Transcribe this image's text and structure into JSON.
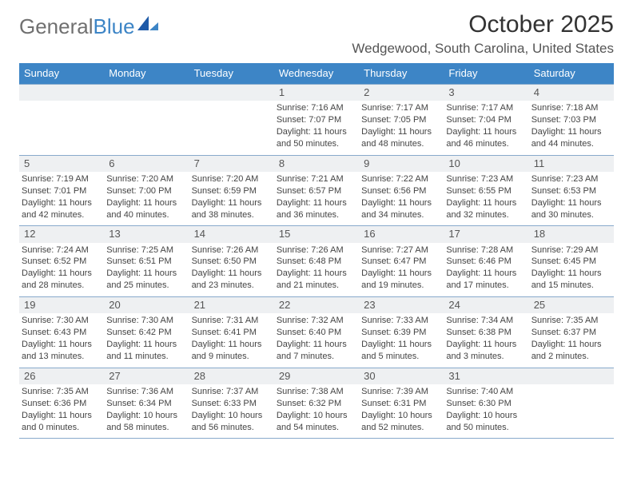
{
  "brand": {
    "general": "General",
    "blue": "Blue"
  },
  "title": "October 2025",
  "location": "Wedgewood, South Carolina, United States",
  "colors": {
    "header_bg": "#3d85c6",
    "header_text": "#ffffff",
    "daynum_bg": "#eef0f2",
    "rule": "#88aacc",
    "text": "#333333"
  },
  "weekdays": [
    "Sunday",
    "Monday",
    "Tuesday",
    "Wednesday",
    "Thursday",
    "Friday",
    "Saturday"
  ],
  "weeks": [
    [
      {
        "n": "",
        "sr": "",
        "ss": "",
        "dl1": "",
        "dl2": ""
      },
      {
        "n": "",
        "sr": "",
        "ss": "",
        "dl1": "",
        "dl2": ""
      },
      {
        "n": "",
        "sr": "",
        "ss": "",
        "dl1": "",
        "dl2": ""
      },
      {
        "n": "1",
        "sr": "Sunrise: 7:16 AM",
        "ss": "Sunset: 7:07 PM",
        "dl1": "Daylight: 11 hours",
        "dl2": "and 50 minutes."
      },
      {
        "n": "2",
        "sr": "Sunrise: 7:17 AM",
        "ss": "Sunset: 7:05 PM",
        "dl1": "Daylight: 11 hours",
        "dl2": "and 48 minutes."
      },
      {
        "n": "3",
        "sr": "Sunrise: 7:17 AM",
        "ss": "Sunset: 7:04 PM",
        "dl1": "Daylight: 11 hours",
        "dl2": "and 46 minutes."
      },
      {
        "n": "4",
        "sr": "Sunrise: 7:18 AM",
        "ss": "Sunset: 7:03 PM",
        "dl1": "Daylight: 11 hours",
        "dl2": "and 44 minutes."
      }
    ],
    [
      {
        "n": "5",
        "sr": "Sunrise: 7:19 AM",
        "ss": "Sunset: 7:01 PM",
        "dl1": "Daylight: 11 hours",
        "dl2": "and 42 minutes."
      },
      {
        "n": "6",
        "sr": "Sunrise: 7:20 AM",
        "ss": "Sunset: 7:00 PM",
        "dl1": "Daylight: 11 hours",
        "dl2": "and 40 minutes."
      },
      {
        "n": "7",
        "sr": "Sunrise: 7:20 AM",
        "ss": "Sunset: 6:59 PM",
        "dl1": "Daylight: 11 hours",
        "dl2": "and 38 minutes."
      },
      {
        "n": "8",
        "sr": "Sunrise: 7:21 AM",
        "ss": "Sunset: 6:57 PM",
        "dl1": "Daylight: 11 hours",
        "dl2": "and 36 minutes."
      },
      {
        "n": "9",
        "sr": "Sunrise: 7:22 AM",
        "ss": "Sunset: 6:56 PM",
        "dl1": "Daylight: 11 hours",
        "dl2": "and 34 minutes."
      },
      {
        "n": "10",
        "sr": "Sunrise: 7:23 AM",
        "ss": "Sunset: 6:55 PM",
        "dl1": "Daylight: 11 hours",
        "dl2": "and 32 minutes."
      },
      {
        "n": "11",
        "sr": "Sunrise: 7:23 AM",
        "ss": "Sunset: 6:53 PM",
        "dl1": "Daylight: 11 hours",
        "dl2": "and 30 minutes."
      }
    ],
    [
      {
        "n": "12",
        "sr": "Sunrise: 7:24 AM",
        "ss": "Sunset: 6:52 PM",
        "dl1": "Daylight: 11 hours",
        "dl2": "and 28 minutes."
      },
      {
        "n": "13",
        "sr": "Sunrise: 7:25 AM",
        "ss": "Sunset: 6:51 PM",
        "dl1": "Daylight: 11 hours",
        "dl2": "and 25 minutes."
      },
      {
        "n": "14",
        "sr": "Sunrise: 7:26 AM",
        "ss": "Sunset: 6:50 PM",
        "dl1": "Daylight: 11 hours",
        "dl2": "and 23 minutes."
      },
      {
        "n": "15",
        "sr": "Sunrise: 7:26 AM",
        "ss": "Sunset: 6:48 PM",
        "dl1": "Daylight: 11 hours",
        "dl2": "and 21 minutes."
      },
      {
        "n": "16",
        "sr": "Sunrise: 7:27 AM",
        "ss": "Sunset: 6:47 PM",
        "dl1": "Daylight: 11 hours",
        "dl2": "and 19 minutes."
      },
      {
        "n": "17",
        "sr": "Sunrise: 7:28 AM",
        "ss": "Sunset: 6:46 PM",
        "dl1": "Daylight: 11 hours",
        "dl2": "and 17 minutes."
      },
      {
        "n": "18",
        "sr": "Sunrise: 7:29 AM",
        "ss": "Sunset: 6:45 PM",
        "dl1": "Daylight: 11 hours",
        "dl2": "and 15 minutes."
      }
    ],
    [
      {
        "n": "19",
        "sr": "Sunrise: 7:30 AM",
        "ss": "Sunset: 6:43 PM",
        "dl1": "Daylight: 11 hours",
        "dl2": "and 13 minutes."
      },
      {
        "n": "20",
        "sr": "Sunrise: 7:30 AM",
        "ss": "Sunset: 6:42 PM",
        "dl1": "Daylight: 11 hours",
        "dl2": "and 11 minutes."
      },
      {
        "n": "21",
        "sr": "Sunrise: 7:31 AM",
        "ss": "Sunset: 6:41 PM",
        "dl1": "Daylight: 11 hours",
        "dl2": "and 9 minutes."
      },
      {
        "n": "22",
        "sr": "Sunrise: 7:32 AM",
        "ss": "Sunset: 6:40 PM",
        "dl1": "Daylight: 11 hours",
        "dl2": "and 7 minutes."
      },
      {
        "n": "23",
        "sr": "Sunrise: 7:33 AM",
        "ss": "Sunset: 6:39 PM",
        "dl1": "Daylight: 11 hours",
        "dl2": "and 5 minutes."
      },
      {
        "n": "24",
        "sr": "Sunrise: 7:34 AM",
        "ss": "Sunset: 6:38 PM",
        "dl1": "Daylight: 11 hours",
        "dl2": "and 3 minutes."
      },
      {
        "n": "25",
        "sr": "Sunrise: 7:35 AM",
        "ss": "Sunset: 6:37 PM",
        "dl1": "Daylight: 11 hours",
        "dl2": "and 2 minutes."
      }
    ],
    [
      {
        "n": "26",
        "sr": "Sunrise: 7:35 AM",
        "ss": "Sunset: 6:36 PM",
        "dl1": "Daylight: 11 hours",
        "dl2": "and 0 minutes."
      },
      {
        "n": "27",
        "sr": "Sunrise: 7:36 AM",
        "ss": "Sunset: 6:34 PM",
        "dl1": "Daylight: 10 hours",
        "dl2": "and 58 minutes."
      },
      {
        "n": "28",
        "sr": "Sunrise: 7:37 AM",
        "ss": "Sunset: 6:33 PM",
        "dl1": "Daylight: 10 hours",
        "dl2": "and 56 minutes."
      },
      {
        "n": "29",
        "sr": "Sunrise: 7:38 AM",
        "ss": "Sunset: 6:32 PM",
        "dl1": "Daylight: 10 hours",
        "dl2": "and 54 minutes."
      },
      {
        "n": "30",
        "sr": "Sunrise: 7:39 AM",
        "ss": "Sunset: 6:31 PM",
        "dl1": "Daylight: 10 hours",
        "dl2": "and 52 minutes."
      },
      {
        "n": "31",
        "sr": "Sunrise: 7:40 AM",
        "ss": "Sunset: 6:30 PM",
        "dl1": "Daylight: 10 hours",
        "dl2": "and 50 minutes."
      },
      {
        "n": "",
        "sr": "",
        "ss": "",
        "dl1": "",
        "dl2": ""
      }
    ]
  ]
}
